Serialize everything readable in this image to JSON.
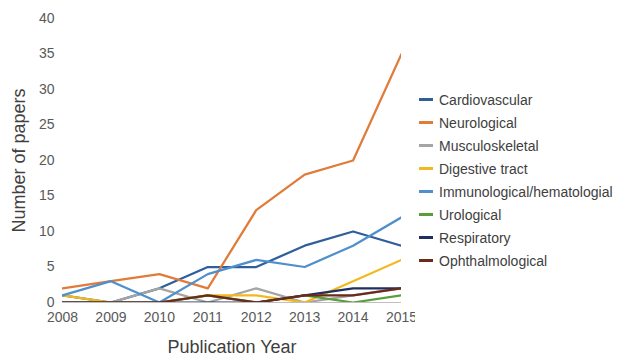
{
  "chart_data": {
    "type": "line",
    "x_label": "Publication Year",
    "y_label": "Number of papers",
    "x": [
      2008,
      2009,
      2010,
      2011,
      2012,
      2013,
      2014,
      2015
    ],
    "xlim": [
      2008,
      2015
    ],
    "xticks": [
      2008,
      2009,
      2010,
      2011,
      2012,
      2013,
      2014,
      2015
    ],
    "ylim": [
      0,
      40
    ],
    "yticks": [
      0,
      5,
      10,
      15,
      20,
      25,
      30,
      35,
      40
    ],
    "grid": false,
    "legend": "right",
    "series": [
      {
        "name": "Cardiovascular",
        "color": "#2e5f9a",
        "values": [
          1,
          0,
          2,
          5,
          5,
          8,
          10,
          8
        ]
      },
      {
        "name": "Neurological",
        "color": "#e07b39",
        "values": [
          2,
          3,
          4,
          2,
          13,
          18,
          20,
          35
        ]
      },
      {
        "name": "Musculoskeletal",
        "color": "#a5a5a5",
        "values": [
          0,
          0,
          2,
          0,
          2,
          0,
          1,
          2
        ]
      },
      {
        "name": "Digestive tract",
        "color": "#f2b91f",
        "values": [
          1,
          0,
          0,
          1,
          1,
          0,
          3,
          6
        ]
      },
      {
        "name": "Immunological/hematologial",
        "color": "#4f8fcc",
        "values": [
          1,
          3,
          0,
          4,
          6,
          5,
          8,
          12
        ]
      },
      {
        "name": "Urological",
        "color": "#5a9e3a",
        "values": [
          0,
          0,
          0,
          1,
          0,
          1,
          0,
          1
        ]
      },
      {
        "name": "Respiratory",
        "color": "#1f2f5f",
        "values": [
          0,
          0,
          0,
          0,
          0,
          1,
          2,
          2
        ]
      },
      {
        "name": "Ophthalmological",
        "color": "#6b2a1a",
        "values": [
          0,
          0,
          0,
          1,
          0,
          1,
          1,
          2
        ]
      }
    ]
  }
}
